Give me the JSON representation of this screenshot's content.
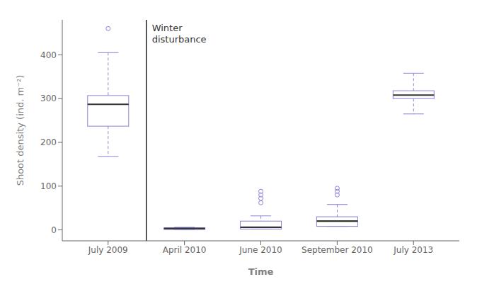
{
  "chart_data": {
    "type": "box",
    "categories": [
      "July 2009",
      "April 2010",
      "June 2010",
      "September 2010",
      "July 2013"
    ],
    "boxes": [
      {
        "q1": 237,
        "median": 287,
        "q3": 307,
        "whislo": 168,
        "whishi": 405,
        "fliers": [
          460
        ]
      },
      {
        "q1": 1,
        "median": 3,
        "q3": 5,
        "whislo": 1,
        "whishi": 6,
        "fliers": []
      },
      {
        "q1": 2,
        "median": 6,
        "q3": 20,
        "whislo": 2,
        "whishi": 32,
        "fliers": [
          62,
          72,
          80,
          88
        ]
      },
      {
        "q1": 8,
        "median": 20,
        "q3": 30,
        "whislo": 8,
        "whishi": 58,
        "fliers": [
          80,
          88,
          95
        ]
      },
      {
        "q1": 300,
        "median": 308,
        "q3": 318,
        "whislo": 265,
        "whishi": 358,
        "fliers": []
      }
    ],
    "xlabel": "Time",
    "ylabel": "Shoot density (ind. m⁻²)",
    "ylim": [
      -25,
      480
    ],
    "yticks": [
      0,
      100,
      200,
      300,
      400
    ],
    "grid": false,
    "vlines": [
      {
        "after": "July 2009"
      }
    ],
    "annotations": [
      {
        "text": "Winter\ndisturbance"
      }
    ]
  }
}
